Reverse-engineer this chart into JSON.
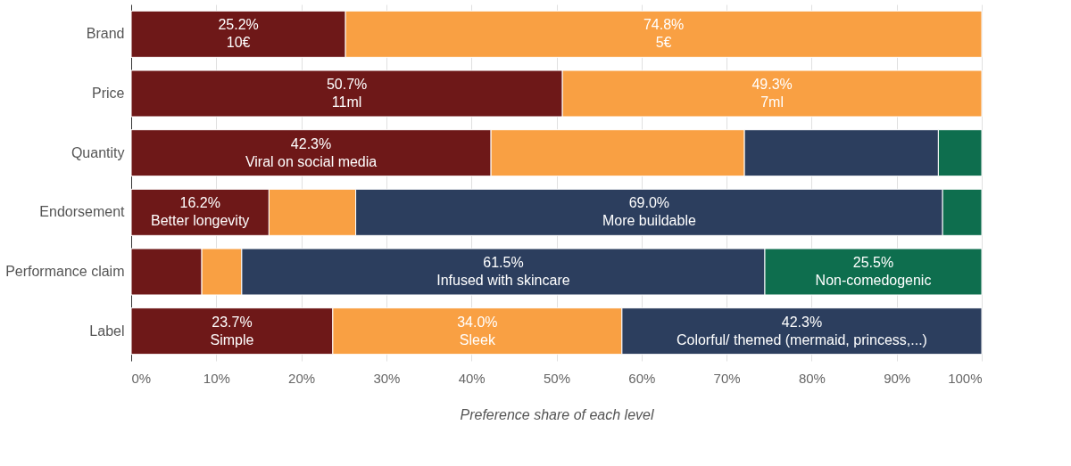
{
  "chart_data": {
    "type": "bar",
    "orientation": "horizontal",
    "stacked": true,
    "xlabel": "Preference share of each level",
    "categories": [
      "Brand",
      "Price",
      "Quantity",
      "Endorsement",
      "Performance claim",
      "Label"
    ],
    "series": [
      {
        "color": "#6e1818",
        "values": [
          25.2,
          50.7,
          42.3,
          16.2,
          8.3,
          23.7
        ],
        "value_labels": [
          "25.2%\n10€",
          "50.7%\n11ml",
          "42.3%\nViral on social media",
          "16.2%\nBetter longevity",
          null,
          "23.7%\nSimple"
        ]
      },
      {
        "color": "#f9a043",
        "values": [
          74.8,
          49.3,
          29.8,
          10.2,
          4.7,
          34.0
        ],
        "value_labels": [
          "74.8%\n5€",
          "49.3%\n7ml",
          null,
          null,
          null,
          "34.0%\nSleek"
        ]
      },
      {
        "color": "#2c3e5e",
        "values": [
          null,
          null,
          22.8,
          69.0,
          61.5,
          42.3
        ],
        "value_labels": [
          null,
          null,
          null,
          "69.0%\nMore buildable",
          "61.5%\nInfused with skincare",
          "42.3%\nColorful/ themed (mermaid, princess,...)"
        ]
      },
      {
        "color": "#0e6e4e",
        "values": [
          null,
          null,
          5.1,
          4.6,
          25.5,
          null
        ],
        "value_labels": [
          null,
          null,
          null,
          null,
          "25.5%\nNon-comedogenic",
          null
        ]
      }
    ],
    "xlim": [
      0,
      100
    ],
    "xticks": [
      {
        "value": 0,
        "label": "0%"
      },
      {
        "value": 10,
        "label": "10%"
      },
      {
        "value": 20,
        "label": "20%"
      },
      {
        "value": 30,
        "label": "30%"
      },
      {
        "value": 40,
        "label": "40%"
      },
      {
        "value": 50,
        "label": "50%"
      },
      {
        "value": 60,
        "label": "60%"
      },
      {
        "value": 70,
        "label": "70%"
      },
      {
        "value": 80,
        "label": "80%"
      },
      {
        "value": 90,
        "label": "90%"
      },
      {
        "value": 100,
        "label": "100%"
      }
    ],
    "grid": "x"
  }
}
